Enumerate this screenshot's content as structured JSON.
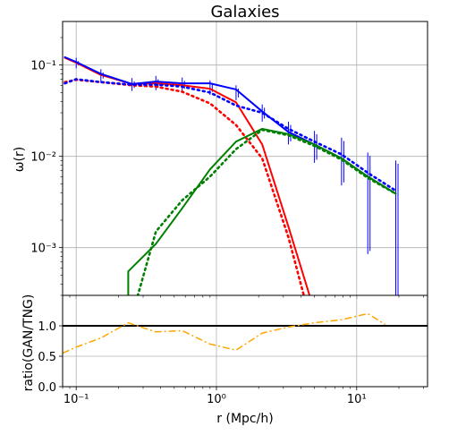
{
  "chart_data": [
    {
      "type": "line",
      "title": "Galaxies",
      "ylabel": "ω(r)",
      "xscale": "log",
      "yscale": "log",
      "xlim": [
        0.08,
        32
      ],
      "ylim": [
        0.0003,
        0.3
      ],
      "grid": true,
      "x_ticks": [
        {
          "value": 0.1,
          "label": "10⁻¹"
        },
        {
          "value": 1,
          "label": "10⁰"
        },
        {
          "value": 10,
          "label": "10¹"
        }
      ],
      "y_ticks": [
        {
          "value": 0.001,
          "label": "10⁻³"
        },
        {
          "value": 0.01,
          "label": "10⁻²"
        },
        {
          "value": 0.1,
          "label": "10⁻¹"
        }
      ],
      "series": [
        {
          "color": "#ff0000",
          "style": "solid",
          "x": [
            0.083,
            0.1,
            0.15,
            0.25,
            0.37,
            0.57,
            0.9,
            1.38,
            2.12,
            3.26,
            5.0
          ],
          "y": [
            0.12,
            0.106,
            0.078,
            0.062,
            0.063,
            0.06,
            0.055,
            0.039,
            0.0135,
            0.0017,
            0.0002
          ]
        },
        {
          "color": "#ff0000",
          "style": "dotted",
          "x": [
            0.083,
            0.1,
            0.15,
            0.25,
            0.37,
            0.57,
            0.9,
            1.38,
            2.12,
            3.26,
            4.5
          ],
          "y": [
            0.065,
            0.069,
            0.065,
            0.06,
            0.058,
            0.051,
            0.038,
            0.022,
            0.0095,
            0.0013,
            0.0002
          ]
        },
        {
          "color": "#0000ff",
          "style": "solid",
          "x": [
            0.083,
            0.1,
            0.15,
            0.25,
            0.37,
            0.57,
            0.9,
            1.38,
            2.12,
            3.26,
            5.0,
            7.8,
            12.0,
            19.0
          ],
          "y": [
            0.122,
            0.108,
            0.08,
            0.062,
            0.066,
            0.063,
            0.063,
            0.054,
            0.031,
            0.0185,
            0.0135,
            0.0095,
            0.006,
            0.0039
          ]
        },
        {
          "color": "#0000ff",
          "style": "dotted",
          "x": [
            0.083,
            0.1,
            0.15,
            0.25,
            0.37,
            0.57,
            0.9,
            1.38,
            2.12,
            3.26,
            5.0,
            7.8,
            12.0,
            19.0
          ],
          "y": [
            0.063,
            0.07,
            0.065,
            0.061,
            0.061,
            0.058,
            0.05,
            0.036,
            0.03,
            0.02,
            0.0145,
            0.0105,
            0.0066,
            0.0042
          ]
        },
        {
          "color": "#008000",
          "style": "solid",
          "x": [
            0.235,
            0.235,
            0.37,
            0.57,
            0.9,
            1.38,
            2.12,
            3.26,
            5.0,
            7.8,
            12.0,
            19.0
          ],
          "y": [
            0.0002,
            0.00055,
            0.0011,
            0.0027,
            0.0072,
            0.0145,
            0.02,
            0.0175,
            0.0135,
            0.0095,
            0.006,
            0.0039
          ]
        },
        {
          "color": "#008000",
          "style": "dotted",
          "x": [
            0.255,
            0.29,
            0.37,
            0.57,
            0.9,
            1.38,
            2.12,
            3.26,
            5.0,
            7.8,
            12.0,
            19.0
          ],
          "y": [
            0.0002,
            0.0004,
            0.0015,
            0.0033,
            0.006,
            0.012,
            0.0195,
            0.017,
            0.013,
            0.0092,
            0.0058,
            0.0039
          ]
        }
      ],
      "error_bars": {
        "color": "#0000ff",
        "x": [
          0.1,
          0.15,
          0.25,
          0.37,
          0.57,
          0.9,
          1.38,
          2.12,
          3.26,
          5.0,
          7.8,
          12.0,
          19.0
        ],
        "low": [
          0.092,
          0.066,
          0.052,
          0.053,
          0.051,
          0.047,
          0.041,
          0.024,
          0.0135,
          0.0085,
          0.0048,
          0.00085,
          0.0002
        ],
        "high": [
          0.12,
          0.09,
          0.072,
          0.076,
          0.073,
          0.068,
          0.06,
          0.037,
          0.024,
          0.019,
          0.016,
          0.011,
          0.009
        ]
      }
    },
    {
      "type": "line",
      "xlabel": "r (Mpc/h)",
      "ylabel": "ratio(GAN/TNG)",
      "xscale": "log",
      "xlim": [
        0.08,
        32
      ],
      "ylim": [
        0.0,
        1.5
      ],
      "grid": true,
      "y_ticks": [
        {
          "value": 0.0,
          "label": "0.0"
        },
        {
          "value": 0.5,
          "label": "0.5"
        },
        {
          "value": 1.0,
          "label": "1.0"
        }
      ],
      "x_ticks": [
        {
          "value": 0.1,
          "label": "10⁻¹"
        },
        {
          "value": 1,
          "label": "10⁰"
        },
        {
          "value": 10,
          "label": "10¹"
        }
      ],
      "reference_line": {
        "y": 1.0,
        "color": "#000000"
      },
      "series": [
        {
          "color": "#ffa500",
          "style": "dashdot",
          "x": [
            0.08,
            0.1,
            0.15,
            0.235,
            0.37,
            0.57,
            0.9,
            1.38,
            2.12,
            3.26,
            5.0,
            7.8,
            12.0,
            16.0
          ],
          "y": [
            0.55,
            0.65,
            0.8,
            1.05,
            0.9,
            0.92,
            0.7,
            0.6,
            0.88,
            0.98,
            1.05,
            1.1,
            1.2,
            1.02
          ]
        }
      ]
    }
  ]
}
